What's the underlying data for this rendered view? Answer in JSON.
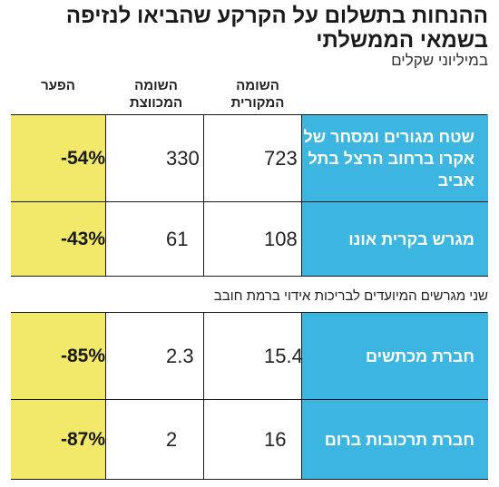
{
  "title": "ההנחות בתשלום על הקרקע שהביאו לנזיפה בשמאי הממשלתי",
  "subtitle": "במיליוני שקלים",
  "columns": {
    "original": "השומה המקורית",
    "reduced": "השומה המכווצת",
    "gap": "הפער"
  },
  "section_label": "שני מגרשים המיועדים לבריכות אידוי ברמת חובב",
  "chart_data": {
    "type": "table",
    "title": "ההנחות בתשלום על הקרקע שהביאו לנזיפה בשמאי הממשלתי",
    "unit": "במיליוני שקלים",
    "columns": [
      "השומה המקורית",
      "השומה המכווצת",
      "הפער"
    ],
    "groups": [
      {
        "label": "",
        "rows": [
          {
            "name": "שטח מגורים ומסחר של אקרו ברחוב הרצל בתל אביב",
            "original": "723",
            "reduced": "330",
            "gap": "-54%"
          },
          {
            "name": "מגרש בקרית אונו",
            "original": "108",
            "reduced": "61",
            "gap": "-43%"
          }
        ]
      },
      {
        "label": "שני מגרשים המיועדים לבריכות אידוי ברמת חובב",
        "rows": [
          {
            "name": "חברת מכתשים",
            "original": "15.4",
            "reduced": "2.3",
            "gap": "-85%"
          },
          {
            "name": "חברת תרכובות ברום",
            "original": "16",
            "reduced": "2",
            "gap": "-87%"
          }
        ]
      }
    ]
  },
  "colors": {
    "label_bg": "#3cb6e0",
    "gap_bg": "#f2e96a",
    "border": "#1a1a1a"
  }
}
